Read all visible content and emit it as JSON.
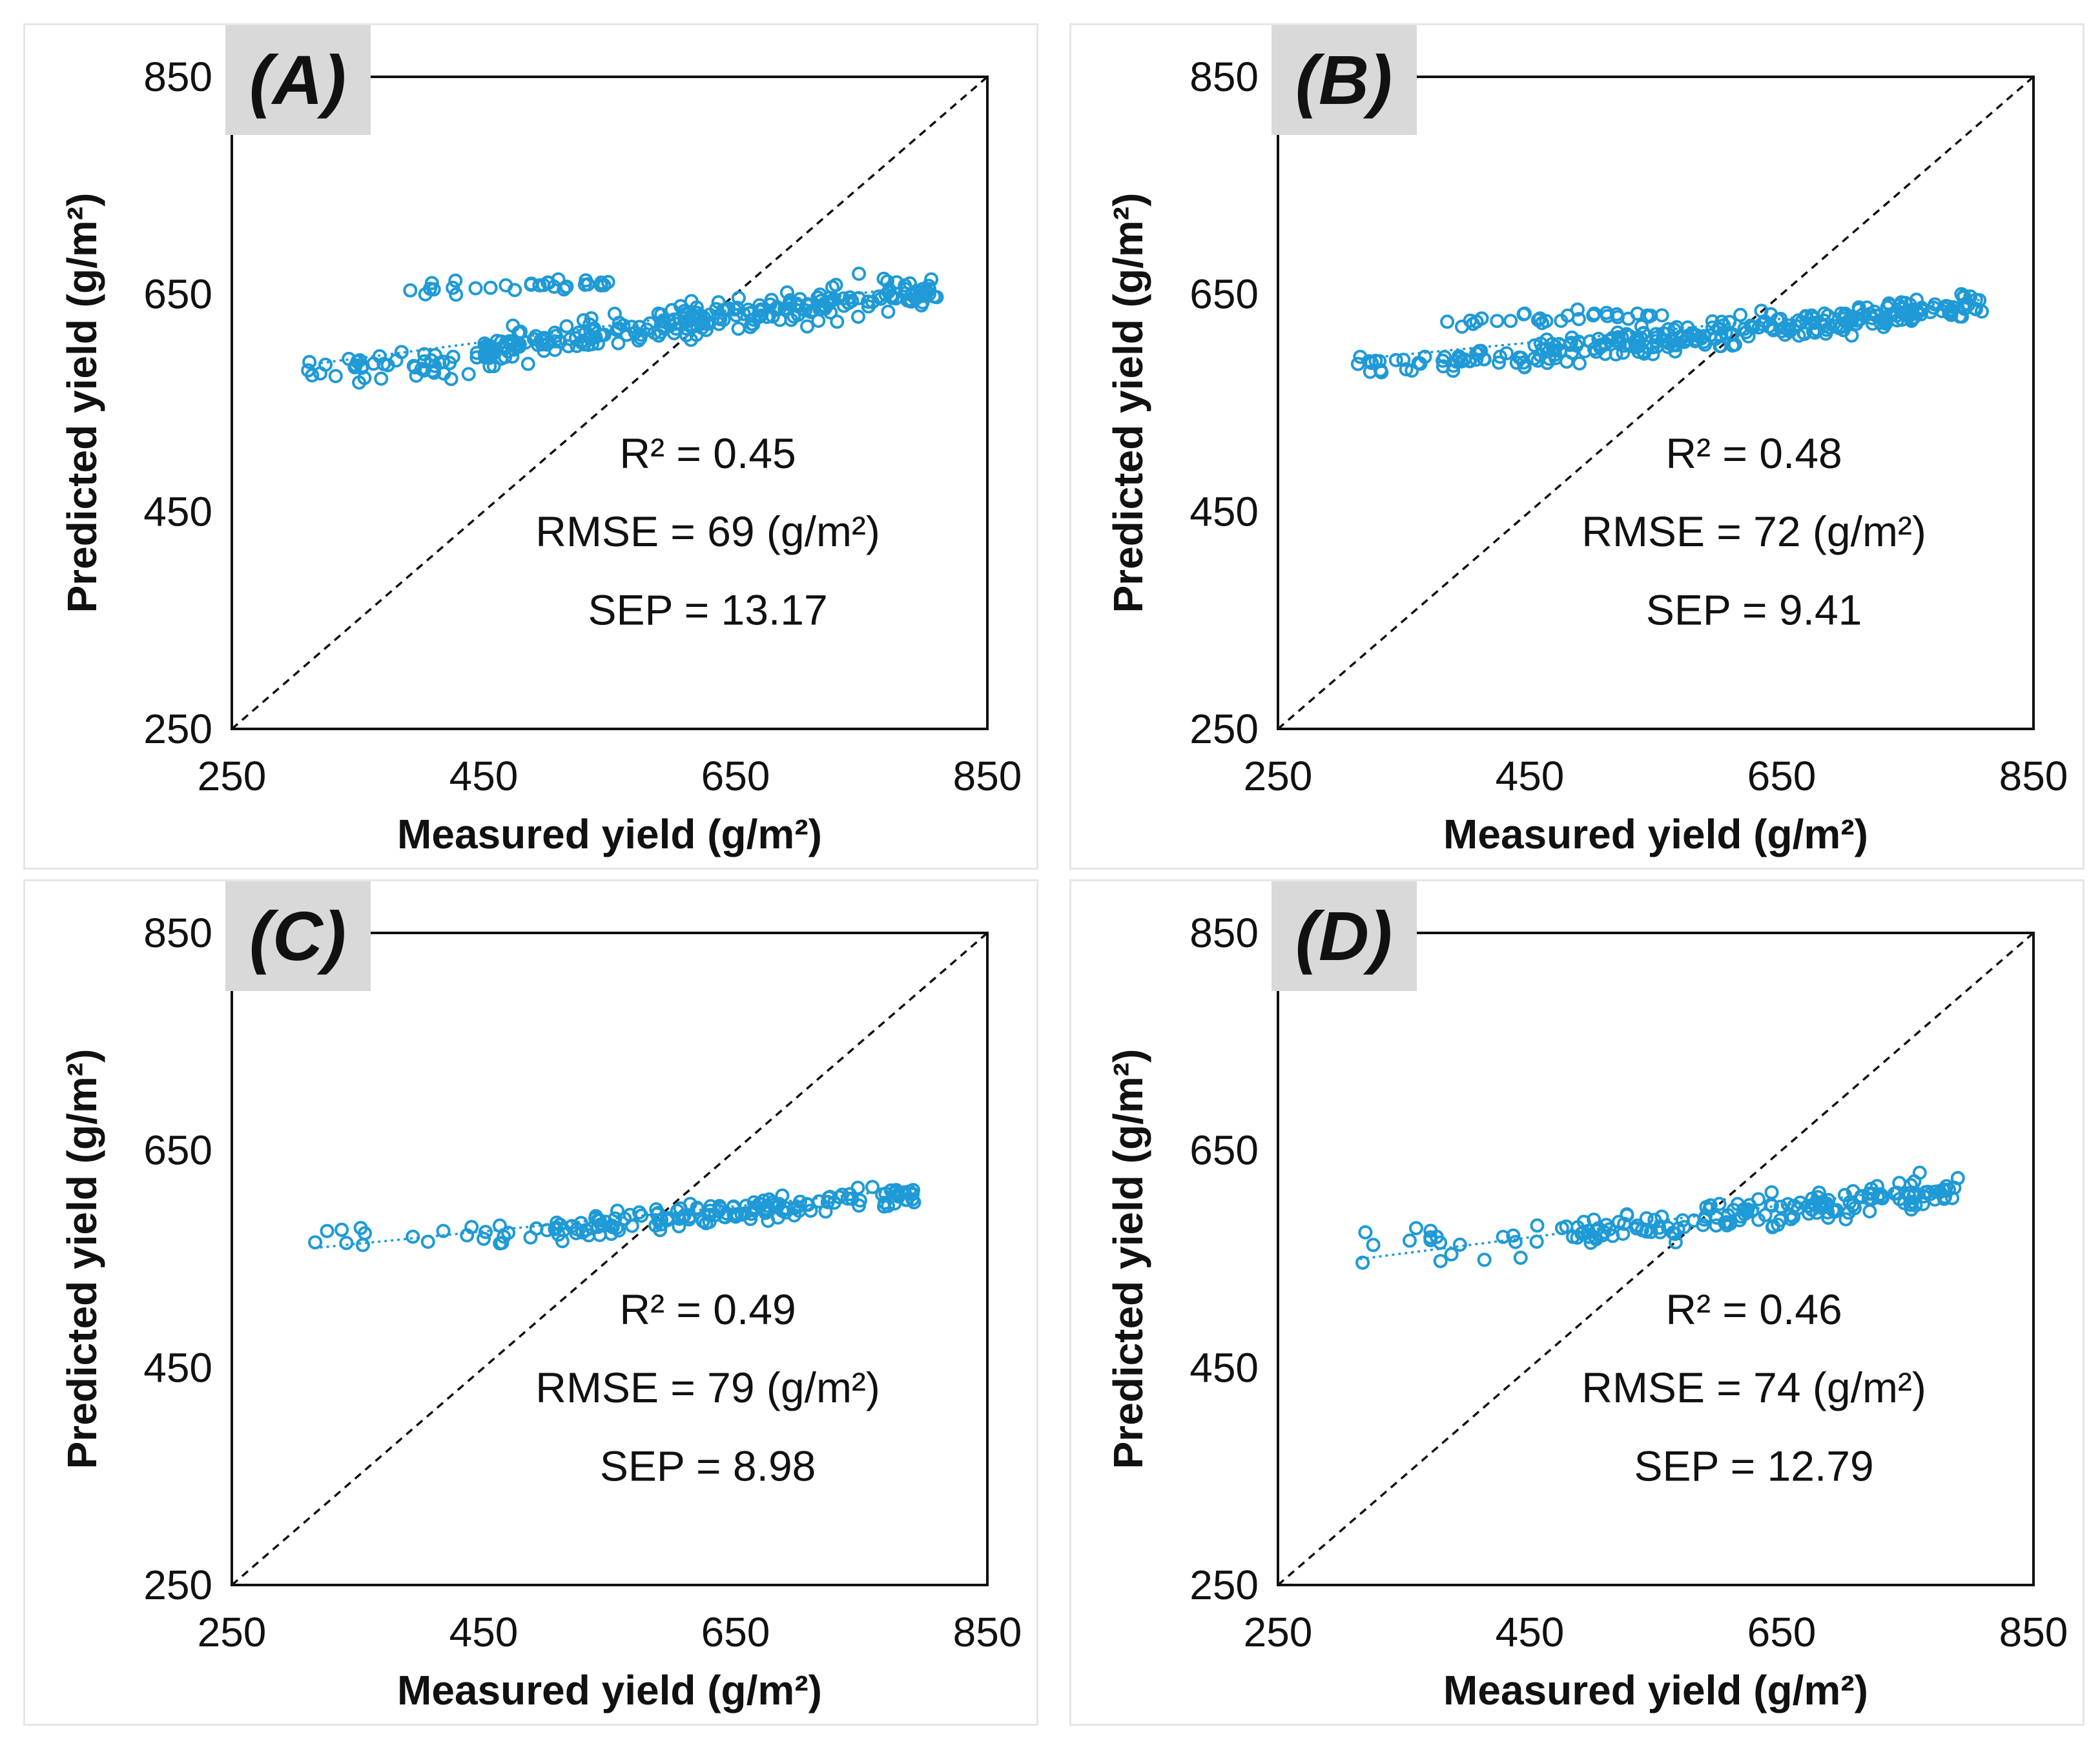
{
  "figure": {
    "panels": [
      {
        "label": "(A)",
        "xlabel": "Measured yield (g/m²)",
        "ylabel": "Predicted yield (g/m²)",
        "stats": {
          "r2": "R² = 0.45",
          "rmse": "RMSE = 69 (g/m²)",
          "sep": "SEP = 13.17"
        }
      },
      {
        "label": "(B)",
        "xlabel": "Measured yield (g/m²)",
        "ylabel": "Predicted yield (g/m²)",
        "stats": {
          "r2": "R² = 0.48",
          "rmse": "RMSE = 72 (g/m²)",
          "sep": "SEP = 9.41"
        }
      },
      {
        "label": "(C)",
        "xlabel": "Measured yield (g/m²)",
        "ylabel": "Predicted yield (g/m²)",
        "stats": {
          "r2": "R² = 0.49",
          "rmse": "RMSE = 79 (g/m²)",
          "sep": "SEP = 8.98"
        }
      },
      {
        "label": "(D)",
        "xlabel": "Measured yield (g/m²)",
        "ylabel": "Predicted yield (g/m²)",
        "stats": {
          "r2": "R² = 0.46",
          "rmse": "RMSE = 74 (g/m²)",
          "sep": "SEP = 12.79"
        }
      }
    ]
  },
  "chart_data": [
    {
      "type": "scatter",
      "title": "(A)",
      "xlabel": "Measured yield (g/m²)",
      "ylabel": "Predicted yield (g/m²)",
      "xlim": [
        250,
        850
      ],
      "ylim": [
        250,
        850
      ],
      "xticks": [
        250,
        450,
        650,
        850
      ],
      "yticks": [
        250,
        450,
        650,
        850
      ],
      "tick_labels": [
        "250",
        "450",
        "650",
        "850"
      ],
      "marker_color": "#1f9ad6",
      "reference_line": {
        "from": [
          250,
          250
        ],
        "to": [
          850,
          850
        ],
        "style": "dashed"
      },
      "trendline": {
        "from": [
          310,
          585
        ],
        "to": [
          810,
          660
        ]
      },
      "point_clusters": [
        {
          "x_range": [
            450,
            810
          ],
          "y_center_at_start": 600,
          "y_center_at_end": 655,
          "y_spread": 22,
          "count": 260
        },
        {
          "x_range": [
            310,
            460
          ],
          "y_center_at_start": 580,
          "y_center_at_end": 590,
          "y_spread": 18,
          "count": 45
        },
        {
          "x_range": [
            390,
            560
          ],
          "y_center_at_start": 655,
          "y_center_at_end": 660,
          "y_spread": 8,
          "count": 30
        }
      ],
      "r2": 0.45,
      "rmse": 69,
      "sep": 13.17
    },
    {
      "type": "scatter",
      "title": "(B)",
      "xlabel": "Measured yield (g/m²)",
      "ylabel": "Predicted yield (g/m²)",
      "xlim": [
        250,
        850
      ],
      "ylim": [
        250,
        850
      ],
      "xticks": [
        250,
        450,
        650,
        850
      ],
      "yticks": [
        250,
        450,
        650,
        850
      ],
      "tick_labels": [
        "250",
        "450",
        "650",
        "850"
      ],
      "marker_color": "#1f9ad6",
      "reference_line": {
        "from": [
          250,
          250
        ],
        "to": [
          850,
          850
        ],
        "style": "dashed"
      },
      "trendline": {
        "from": [
          310,
          590
        ],
        "to": [
          810,
          645
        ]
      },
      "point_clusters": [
        {
          "x_range": [
            450,
            810
          ],
          "y_center_at_start": 595,
          "y_center_at_end": 640,
          "y_spread": 18,
          "count": 260
        },
        {
          "x_range": [
            310,
            460
          ],
          "y_center_at_start": 585,
          "y_center_at_end": 590,
          "y_spread": 14,
          "count": 45
        },
        {
          "x_range": [
            380,
            560
          ],
          "y_center_at_start": 625,
          "y_center_at_end": 632,
          "y_spread": 8,
          "count": 30
        }
      ],
      "r2": 0.48,
      "rmse": 72,
      "sep": 9.41
    },
    {
      "type": "scatter",
      "title": "(C)",
      "xlabel": "Measured yield (g/m²)",
      "ylabel": "Predicted yield (g/m²)",
      "xlim": [
        250,
        850
      ],
      "ylim": [
        250,
        850
      ],
      "xticks": [
        250,
        450,
        650,
        850
      ],
      "yticks": [
        250,
        450,
        650,
        850
      ],
      "tick_labels": [
        "250",
        "450",
        "650",
        "850"
      ],
      "marker_color": "#1f9ad6",
      "reference_line": {
        "from": [
          250,
          250
        ],
        "to": [
          850,
          850
        ],
        "style": "dashed"
      },
      "trendline": {
        "from": [
          315,
          560
        ],
        "to": [
          795,
          615
        ]
      },
      "point_clusters": [
        {
          "x_range": [
            490,
            795
          ],
          "y_center_at_start": 575,
          "y_center_at_end": 610,
          "y_spread": 14,
          "count": 150
        },
        {
          "x_range": [
            315,
            490
          ],
          "y_center_at_start": 565,
          "y_center_at_end": 575,
          "y_spread": 18,
          "count": 20
        }
      ],
      "r2": 0.49,
      "rmse": 79,
      "sep": 8.98
    },
    {
      "type": "scatter",
      "title": "(D)",
      "xlabel": "Measured yield (g/m²)",
      "ylabel": "Predicted yield (g/m²)",
      "xlim": [
        250,
        850
      ],
      "ylim": [
        250,
        850
      ],
      "xticks": [
        250,
        450,
        650,
        850
      ],
      "yticks": [
        250,
        450,
        650,
        850
      ],
      "tick_labels": [
        "250",
        "450",
        "650",
        "850"
      ],
      "marker_color": "#1f9ad6",
      "reference_line": {
        "from": [
          250,
          250
        ],
        "to": [
          850,
          850
        ],
        "style": "dashed"
      },
      "trendline": {
        "from": [
          315,
          550
        ],
        "to": [
          790,
          620
        ]
      },
      "point_clusters": [
        {
          "x_range": [
            480,
            790
          ],
          "y_center_at_start": 570,
          "y_center_at_end": 615,
          "y_spread": 20,
          "count": 160
        },
        {
          "x_range": [
            315,
            480
          ],
          "y_center_at_start": 560,
          "y_center_at_end": 570,
          "y_spread": 28,
          "count": 22
        }
      ],
      "r2": 0.46,
      "rmse": 74,
      "sep": 12.79
    }
  ]
}
